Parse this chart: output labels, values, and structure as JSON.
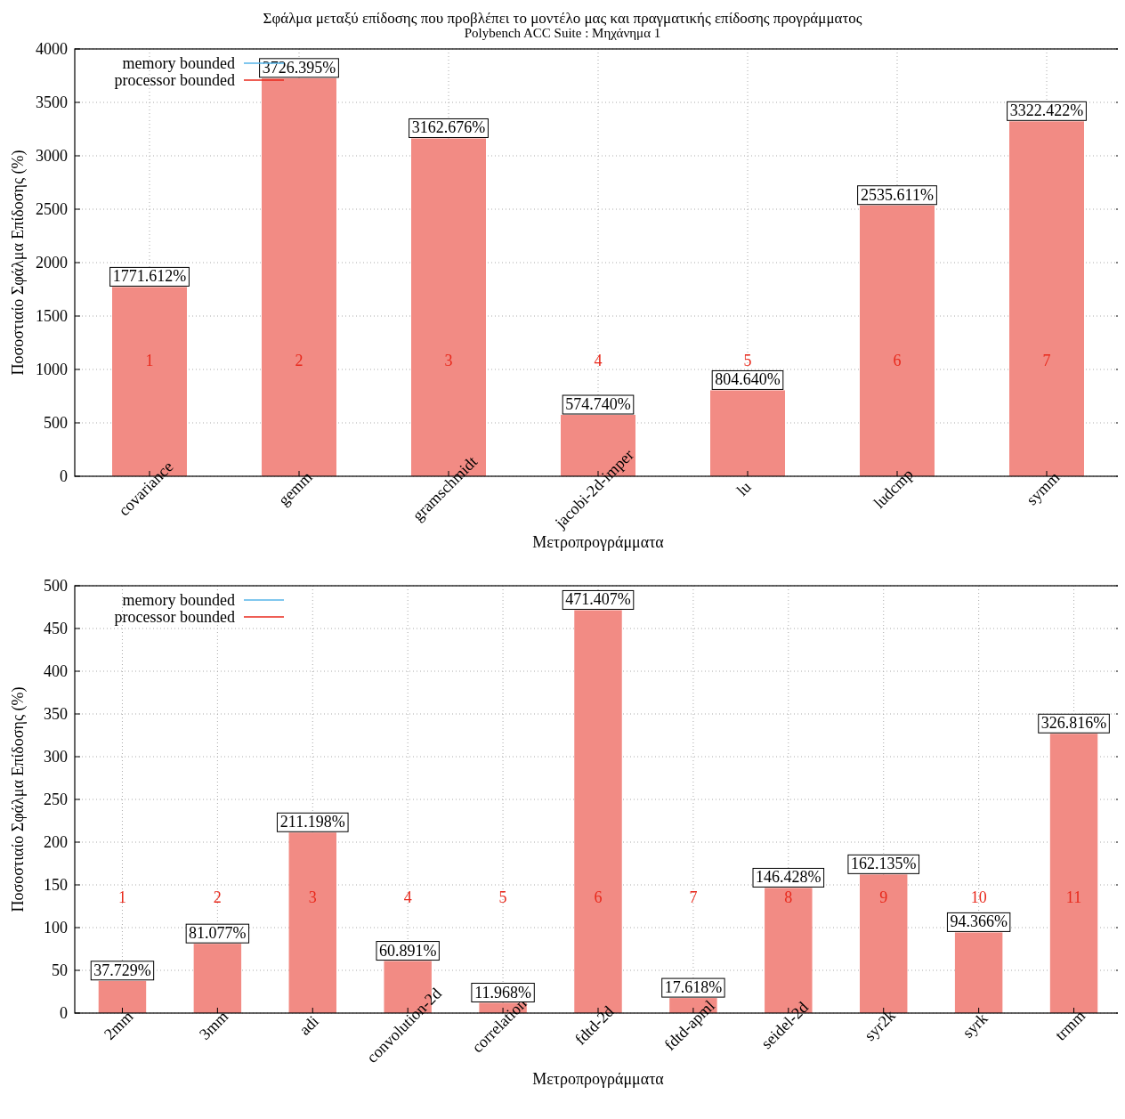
{
  "chart_data": [
    {
      "type": "bar",
      "title": "Σφάλμα μεταξύ επίδοσης που προβλέπει το μοντέλο μας και πραγματικής επίδοσης προγράμματος",
      "subtitle": "Polybench ACC Suite : Μηχάνημα 1",
      "xlabel": "Μετροπρογράμματα",
      "ylabel": "Ποσοστιαίο Σφάλμα Επίδοσης (%)",
      "categories": [
        "covariance",
        "gemm",
        "gramschmidt",
        "jacobi-2d-imper",
        "lu",
        "ludcmp",
        "symm"
      ],
      "series": [
        {
          "name": "memory bounded",
          "color": "#56b4e9",
          "values": [
            null,
            null,
            null,
            null,
            null,
            null,
            null
          ]
        },
        {
          "name": "processor bounded",
          "color": "#f28b84",
          "values": [
            1771.612,
            3726.395,
            3162.676,
            574.74,
            804.64,
            2535.611,
            3322.422
          ],
          "value_labels": [
            "1771.612%",
            "3726.395%",
            "3162.676%",
            "574.740%",
            "804.640%",
            "2535.611%",
            "3322.422%"
          ]
        }
      ],
      "ylim": [
        0,
        4000
      ],
      "yticks": [
        0,
        500,
        1000,
        1500,
        2000,
        2500,
        3000,
        3500,
        4000
      ],
      "grid": true,
      "legend": "top left",
      "annotations": [
        "1",
        "2",
        "3",
        "4",
        "5",
        "6",
        "7"
      ]
    },
    {
      "type": "bar",
      "xlabel": "Μετροπρογράμματα",
      "ylabel": "Ποσοστιαίο Σφάλμα Επίδοσης (%)",
      "categories": [
        "2mm",
        "3mm",
        "adi",
        "convolution-2d",
        "correlation",
        "fdtd-2d",
        "fdtd-apml",
        "seidel-2d",
        "syr2k",
        "syrk",
        "trmm"
      ],
      "series": [
        {
          "name": "memory bounded",
          "color": "#56b4e9",
          "values": [
            null,
            null,
            null,
            null,
            null,
            null,
            null,
            null,
            null,
            null,
            null
          ]
        },
        {
          "name": "processor bounded",
          "color": "#f28b84",
          "values": [
            37.729,
            81.077,
            211.198,
            60.891,
            11.968,
            471.407,
            17.618,
            146.428,
            162.135,
            94.366,
            326.816
          ],
          "value_labels": [
            "37.729%",
            "81.077%",
            "211.198%",
            "60.891%",
            "11.968%",
            "471.407%",
            "17.618%",
            "146.428%",
            "162.135%",
            "94.366%",
            "326.816%"
          ]
        }
      ],
      "ylim": [
        0,
        500
      ],
      "yticks": [
        0,
        50,
        100,
        150,
        200,
        250,
        300,
        350,
        400,
        450,
        500
      ],
      "grid": true,
      "legend": "top left",
      "annotations": [
        "1",
        "2",
        "3",
        "4",
        "5",
        "6",
        "7",
        "8",
        "9",
        "10",
        "11"
      ]
    }
  ]
}
